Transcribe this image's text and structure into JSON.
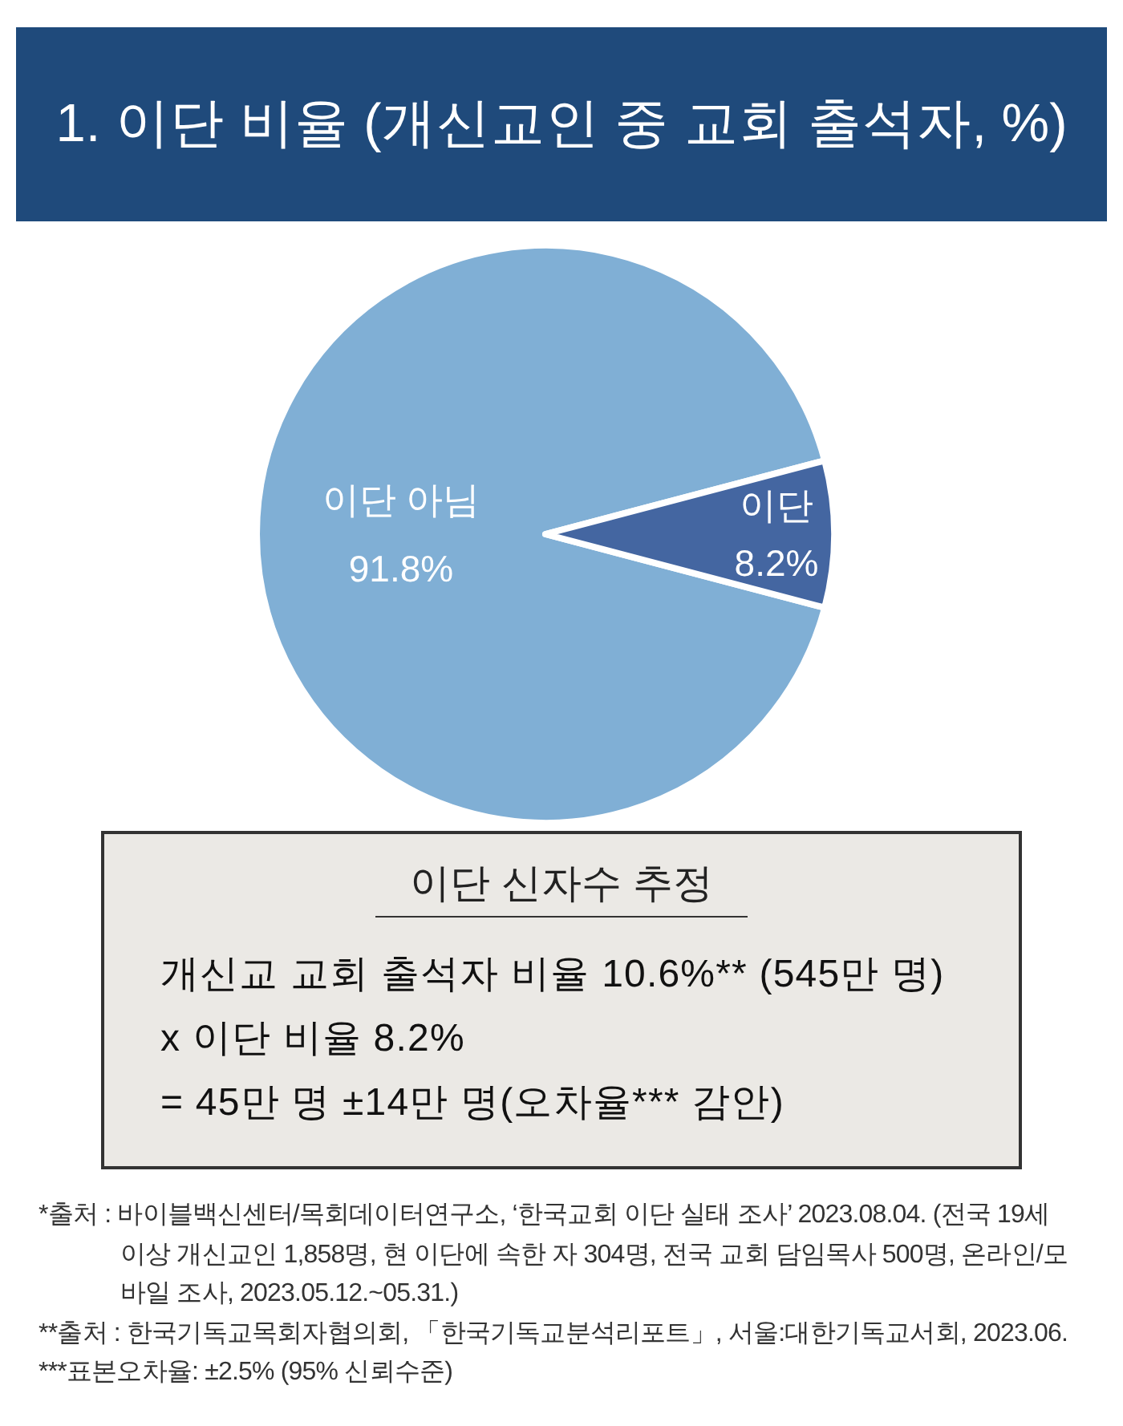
{
  "chart_data": [
    {
      "type": "pie",
      "title": "1. 이단 비율 (개신교인 중 교회 출석자, %)",
      "categories": [
        "이단 아님",
        "이단"
      ],
      "values": [
        91.8,
        8.2
      ],
      "colors": [
        "#80afd5",
        "#4466a1"
      ],
      "value_labels": [
        "91.8%",
        "8.2%"
      ],
      "annotations": [
        "*출처 : 바이블백신센터/목회데이터연구소, ‘한국교회 이단 실태 조사’ 2023.08.04. (전국 19세 이상 개신교인 1,858명, 현 이단에 속한 자 304명, 전국 교회 담임목사 500명, 온라인/모바일 조사, 2023.05.12.~05.31.)",
        "**출처 : 한국기독교목회자협의회, 「한국기독교분석리포트」, 서울:대한기독교서회, 2023.06.",
        "***표본오차율: ±2.5% (95% 신뢰수준)"
      ]
    },
    {
      "type": "other",
      "title": "이단 신자수 추정",
      "annotations": [
        "개신교 교회 출석자 비율 10.6%** (545만 명)",
        "x 이단 비율 8.2%",
        "= 45만 명 ±14만 명(오차율*** 감안)"
      ]
    }
  ]
}
